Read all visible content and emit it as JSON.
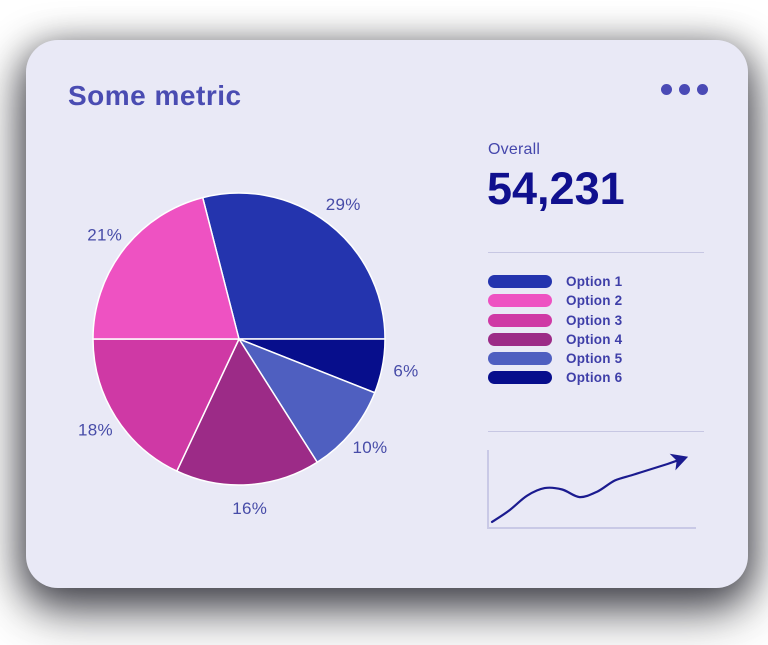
{
  "card": {
    "title": "Some metric",
    "menu_icon": "ellipsis-icon"
  },
  "overall": {
    "label": "Overall",
    "value": "54,231"
  },
  "colors": {
    "card_bg": "#e9e9f6",
    "title_text": "#4a4cb2",
    "overall_value_text": "#10108e",
    "divider": "#c7c7e3",
    "sparkline_stroke": "#1b1b8f",
    "sparkline_axis": "#c9c9e6",
    "pie_slice_separator": "#ffffff",
    "pie_label_text": "#474ca8",
    "legend_label_text": "#3e3ea8"
  },
  "chart_data": [
    {
      "type": "pie",
      "title": "Some metric",
      "labels": [
        "Option 1",
        "Option 2",
        "Option 3",
        "Option 4",
        "Option 5",
        "Option 6"
      ],
      "values": [
        29,
        21,
        18,
        16,
        10,
        6
      ],
      "unit": "%",
      "slice_labels": [
        "29%",
        "21%",
        "18%",
        "16%",
        "10%",
        "6%"
      ],
      "colors": [
        "#2434ae",
        "#ee52c2",
        "#cf39a5",
        "#9c2b87",
        "#4f5fc0",
        "#070e8c"
      ],
      "start_angle_deg_from_top": -14.4,
      "clockwise_draw_order": [
        "Option 1",
        "Option 6",
        "Option 5",
        "Option 4",
        "Option 3",
        "Option 2"
      ],
      "labels_position": "outside",
      "legend_position": "right"
    },
    {
      "type": "line",
      "title": "trend sparkline",
      "x": [
        0,
        1,
        2,
        3,
        4,
        5,
        6,
        7,
        8,
        9,
        10,
        11
      ],
      "values": [
        3,
        20,
        41,
        52,
        50,
        39,
        47,
        63,
        71,
        79,
        87,
        96
      ],
      "ylabel": "",
      "xlabel": "",
      "tick_labels": "none",
      "grid": false,
      "annotations": [
        "arrowhead at line end indicating upward trend"
      ]
    }
  ],
  "legend": {
    "items": [
      {
        "label": "Option 1",
        "color": "#2434ae"
      },
      {
        "label": "Option 2",
        "color": "#ee52c2"
      },
      {
        "label": "Option 3",
        "color": "#cf39a5"
      },
      {
        "label": "Option 4",
        "color": "#9c2b87"
      },
      {
        "label": "Option 5",
        "color": "#4f5fc0"
      },
      {
        "label": "Option 6",
        "color": "#070e8c"
      }
    ]
  }
}
